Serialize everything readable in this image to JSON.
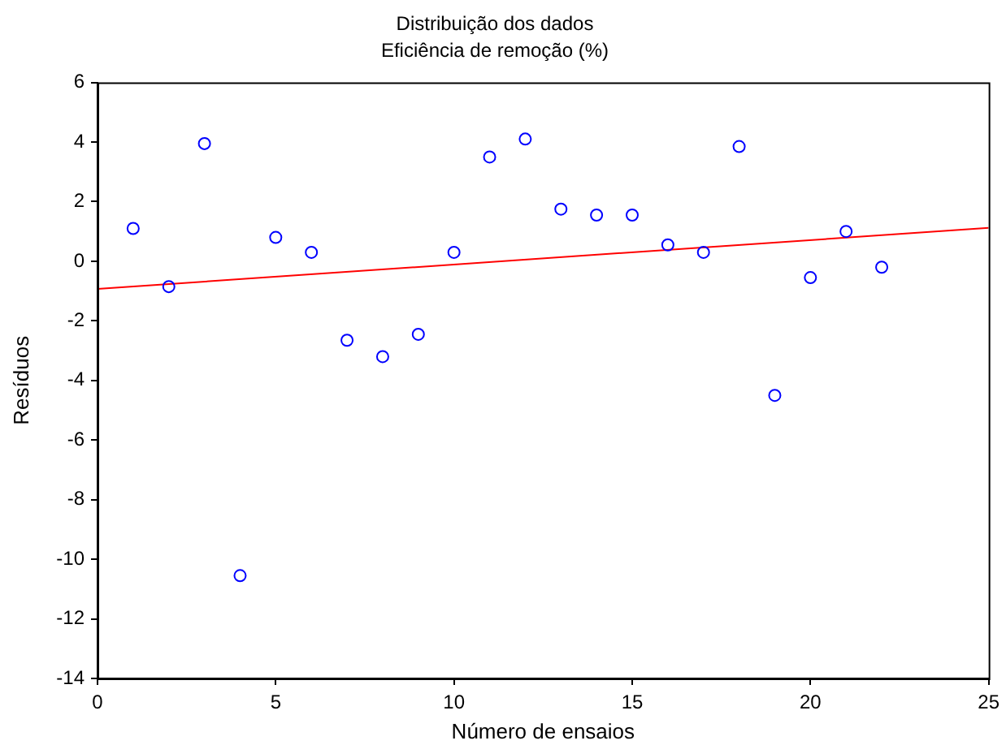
{
  "chart_data": {
    "type": "scatter",
    "title": "Distribuição dos dados",
    "subtitle": "Eficiência de remoção (%)",
    "xlabel": "Número de ensaios",
    "ylabel": "Resíduos",
    "series": [
      {
        "color": "#0000ff",
        "marker": "circle",
        "x": [
          1,
          2,
          3,
          4,
          5,
          6,
          7,
          8,
          9,
          10,
          11,
          12,
          13,
          14,
          15,
          16,
          17,
          18,
          19,
          20,
          21,
          22
        ],
        "values": [
          1.1,
          -0.85,
          3.95,
          -10.55,
          0.8,
          0.3,
          -2.65,
          -3.2,
          -2.45,
          0.3,
          3.5,
          4.1,
          1.75,
          1.55,
          1.55,
          0.55,
          0.3,
          3.85,
          -4.5,
          -0.55,
          1.0,
          -0.2
        ]
      },
      {
        "type": "line",
        "color": "#ff0000",
        "marker": "none",
        "x": [
          0,
          25
        ],
        "values": [
          -0.93,
          1.12
        ]
      }
    ],
    "xlim": [
      0,
      25
    ],
    "xticks": [
      0,
      5,
      10,
      15,
      20,
      25
    ],
    "ylim": [
      -14,
      6
    ],
    "yticks": [
      -14,
      -12,
      -10,
      -8,
      -6,
      -4,
      -2,
      0,
      2,
      4,
      6
    ],
    "grid": false,
    "legend": false
  }
}
